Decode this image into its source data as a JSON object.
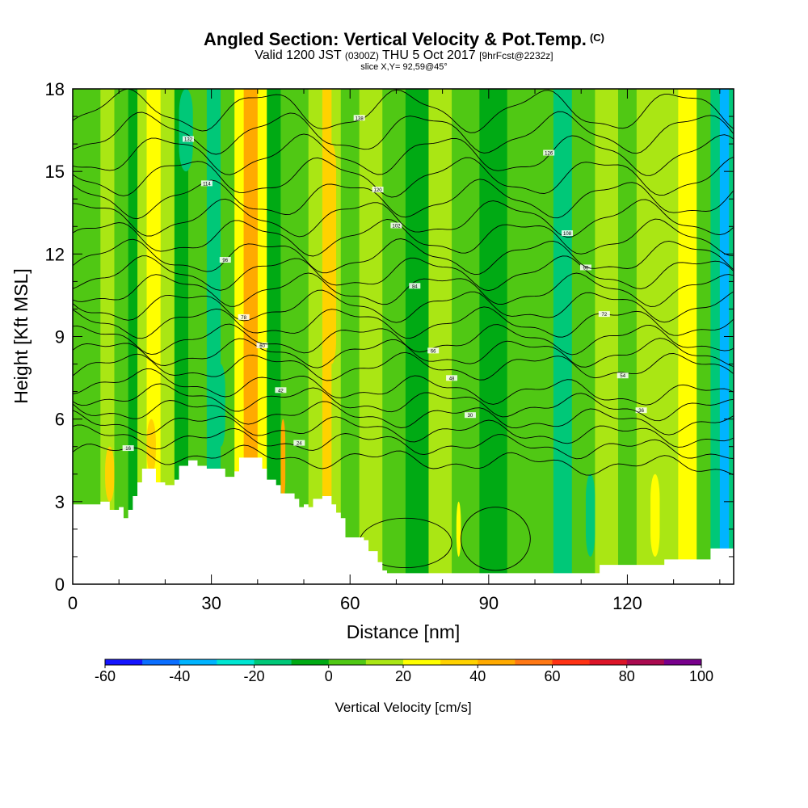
{
  "title": {
    "main": "Angled Section: Vertical Velocity & Pot.Temp.",
    "main_unit": "(C)",
    "valid_prefix": "Valid 1200 JST",
    "valid_utc": "(0300Z)",
    "valid_date": "THU 5 Oct 2017",
    "valid_fcst": "[9hrFcst@2232z]",
    "slice": "slice X,Y= 92,59@45°"
  },
  "chart_data": {
    "type": "heatmap",
    "xlabel": "Distance [nm]",
    "ylabel": "Height [Kft MSL]",
    "xlim": [
      0,
      143
    ],
    "ylim": [
      0,
      18
    ],
    "x_ticks": [
      "0",
      "30",
      "60",
      "90",
      "120"
    ],
    "x_tick_values": [
      0,
      30,
      60,
      90,
      120
    ],
    "y_ticks": [
      "0",
      "3",
      "6",
      "9",
      "12",
      "15",
      "18"
    ],
    "y_tick_values": [
      0,
      3,
      6,
      9,
      12,
      15,
      18
    ],
    "colorbar": {
      "title": "Vertical Velocity [cm/s]",
      "labels": [
        "-60",
        "-40",
        "-20",
        "0",
        "20",
        "40",
        "60",
        "80",
        "100"
      ],
      "min": -60,
      "max": 100,
      "step": 10,
      "colors": [
        "#1414ff",
        "#0a6eff",
        "#00b4ff",
        "#00e6d2",
        "#00c878",
        "#00aa14",
        "#50c814",
        "#aae614",
        "#ffff00",
        "#ffd200",
        "#ffaa00",
        "#ff7814",
        "#ff3214",
        "#dc1428",
        "#aa0a50",
        "#78008c"
      ]
    },
    "columns": [
      {
        "x": 0,
        "w": 3,
        "v": 0
      },
      {
        "x": 3,
        "w": 3,
        "v": 8
      },
      {
        "x": 6,
        "w": 3,
        "v": 18
      },
      {
        "x": 9,
        "w": 3,
        "v": 5
      },
      {
        "x": 12,
        "w": 2,
        "v": -8
      },
      {
        "x": 14,
        "w": 2,
        "v": 10
      },
      {
        "x": 16,
        "w": 3,
        "v": 28
      },
      {
        "x": 19,
        "w": 3,
        "v": 12
      },
      {
        "x": 22,
        "w": 3,
        "v": -5
      },
      {
        "x": 25,
        "w": 4,
        "v": 2
      },
      {
        "x": 29,
        "w": 3,
        "v": -15
      },
      {
        "x": 32,
        "w": 3,
        "v": 8
      },
      {
        "x": 35,
        "w": 2,
        "v": 25
      },
      {
        "x": 37,
        "w": 3,
        "v": 40
      },
      {
        "x": 40,
        "w": 2,
        "v": 22
      },
      {
        "x": 42,
        "w": 3,
        "v": -3
      },
      {
        "x": 45,
        "w": 3,
        "v": 6
      },
      {
        "x": 48,
        "w": 3,
        "v": 0
      },
      {
        "x": 51,
        "w": 3,
        "v": 12
      },
      {
        "x": 54,
        "w": 2,
        "v": 30
      },
      {
        "x": 56,
        "w": 2,
        "v": 18
      },
      {
        "x": 58,
        "w": 4,
        "v": 4
      },
      {
        "x": 62,
        "w": 5,
        "v": 14
      },
      {
        "x": 67,
        "w": 5,
        "v": 6
      },
      {
        "x": 72,
        "w": 5,
        "v": -4
      },
      {
        "x": 77,
        "w": 5,
        "v": 10
      },
      {
        "x": 82,
        "w": 6,
        "v": 3
      },
      {
        "x": 88,
        "w": 6,
        "v": -6
      },
      {
        "x": 94,
        "w": 5,
        "v": 5
      },
      {
        "x": 99,
        "w": 5,
        "v": 0
      },
      {
        "x": 104,
        "w": 4,
        "v": -14
      },
      {
        "x": 108,
        "w": 5,
        "v": 8
      },
      {
        "x": 113,
        "w": 5,
        "v": 14
      },
      {
        "x": 118,
        "w": 4,
        "v": 4
      },
      {
        "x": 122,
        "w": 5,
        "v": 18
      },
      {
        "x": 127,
        "w": 4,
        "v": 12
      },
      {
        "x": 131,
        "w": 4,
        "v": 24
      },
      {
        "x": 135,
        "w": 3,
        "v": 6
      },
      {
        "x": 138,
        "w": 2,
        "v": -20
      },
      {
        "x": 140,
        "w": 2,
        "v": -40
      },
      {
        "x": 142,
        "w": 1,
        "v": -20
      }
    ],
    "blobs": [
      {
        "x": 16,
        "w": 3,
        "y0": 10,
        "y1": 18,
        "v": 28
      },
      {
        "x": 37,
        "w": 3,
        "y0": 6,
        "y1": 15,
        "v": 40
      },
      {
        "x": 55,
        "w": 2,
        "y0": 8,
        "y1": 16,
        "v": 34
      },
      {
        "x": 7,
        "w": 2,
        "y0": 3,
        "y1": 5,
        "v": 34
      },
      {
        "x": 16,
        "w": 2,
        "y0": 4,
        "y1": 6,
        "v": 34
      },
      {
        "x": 45,
        "w": 1,
        "y0": 3,
        "y1": 6,
        "v": 48
      },
      {
        "x": 23,
        "w": 3,
        "y0": 15,
        "y1": 18,
        "v": -15
      },
      {
        "x": 31,
        "w": 2,
        "y0": 5,
        "y1": 8,
        "v": -18
      },
      {
        "x": 83,
        "w": 1,
        "y0": 1,
        "y1": 3,
        "v": 28
      },
      {
        "x": 111,
        "w": 2,
        "y0": 1,
        "y1": 4,
        "v": -14
      },
      {
        "x": 125,
        "w": 2,
        "y0": 1,
        "y1": 4,
        "v": 20
      }
    ],
    "terrain": [
      [
        0,
        2.9
      ],
      [
        3,
        2.9
      ],
      [
        6,
        3.0
      ],
      [
        8,
        2.7
      ],
      [
        10,
        2.8
      ],
      [
        11,
        2.4
      ],
      [
        12,
        2.7
      ],
      [
        13,
        3.2
      ],
      [
        14,
        3.7
      ],
      [
        15,
        4.2
      ],
      [
        17,
        4.2
      ],
      [
        18,
        3.7
      ],
      [
        20,
        3.6
      ],
      [
        22,
        3.8
      ],
      [
        23,
        4.3
      ],
      [
        25,
        4.5
      ],
      [
        27,
        4.3
      ],
      [
        29,
        4.2
      ],
      [
        31,
        4.2
      ],
      [
        33,
        3.9
      ],
      [
        35,
        4.1
      ],
      [
        36,
        4.6
      ],
      [
        40,
        4.6
      ],
      [
        41,
        4.2
      ],
      [
        42,
        3.8
      ],
      [
        44,
        3.6
      ],
      [
        45,
        3.3
      ],
      [
        46,
        3.3
      ],
      [
        48,
        3.1
      ],
      [
        49,
        2.8
      ],
      [
        50,
        2.9
      ],
      [
        51,
        2.8
      ],
      [
        52,
        3.1
      ],
      [
        54,
        3.2
      ],
      [
        56,
        2.9
      ],
      [
        57,
        2.6
      ],
      [
        58,
        2.4
      ],
      [
        59,
        1.7
      ],
      [
        63,
        1.6
      ],
      [
        64,
        1.2
      ],
      [
        66,
        0.8
      ],
      [
        67,
        0.5
      ],
      [
        68,
        0.4
      ],
      [
        90,
        0.4
      ],
      [
        100,
        0.4
      ],
      [
        108,
        0.4
      ],
      [
        113,
        0.4
      ],
      [
        114,
        0.7
      ],
      [
        127,
        0.7
      ],
      [
        128,
        0.9
      ],
      [
        137,
        0.9
      ],
      [
        138,
        1.3
      ],
      [
        143,
        1.3
      ]
    ],
    "isentropes": [
      {
        "base": 4.8,
        "label": "16"
      },
      {
        "base": 5.4,
        "label": "24"
      },
      {
        "base": 5.9,
        "label": "30"
      },
      {
        "base": 6.4,
        "label": "36"
      },
      {
        "base": 6.9,
        "label": "42"
      },
      {
        "base": 7.4,
        "label": "48"
      },
      {
        "base": 7.9,
        "label": "54"
      },
      {
        "base": 8.4,
        "label": "60"
      },
      {
        "base": 8.9,
        "label": "66"
      },
      {
        "base": 9.5,
        "label": "72"
      },
      {
        "base": 10.1,
        "label": "78"
      },
      {
        "base": 10.7,
        "label": "84"
      },
      {
        "base": 11.3,
        "label": "90"
      },
      {
        "base": 11.9,
        "label": "96"
      },
      {
        "base": 12.6,
        "label": "102"
      },
      {
        "base": 13.3,
        "label": "108"
      },
      {
        "base": 14.0,
        "label": "114"
      },
      {
        "base": 14.8,
        "label": "120"
      },
      {
        "base": 15.6,
        "label": "126"
      },
      {
        "base": 16.4,
        "label": "132"
      },
      {
        "base": 17.2,
        "label": "138"
      }
    ]
  }
}
